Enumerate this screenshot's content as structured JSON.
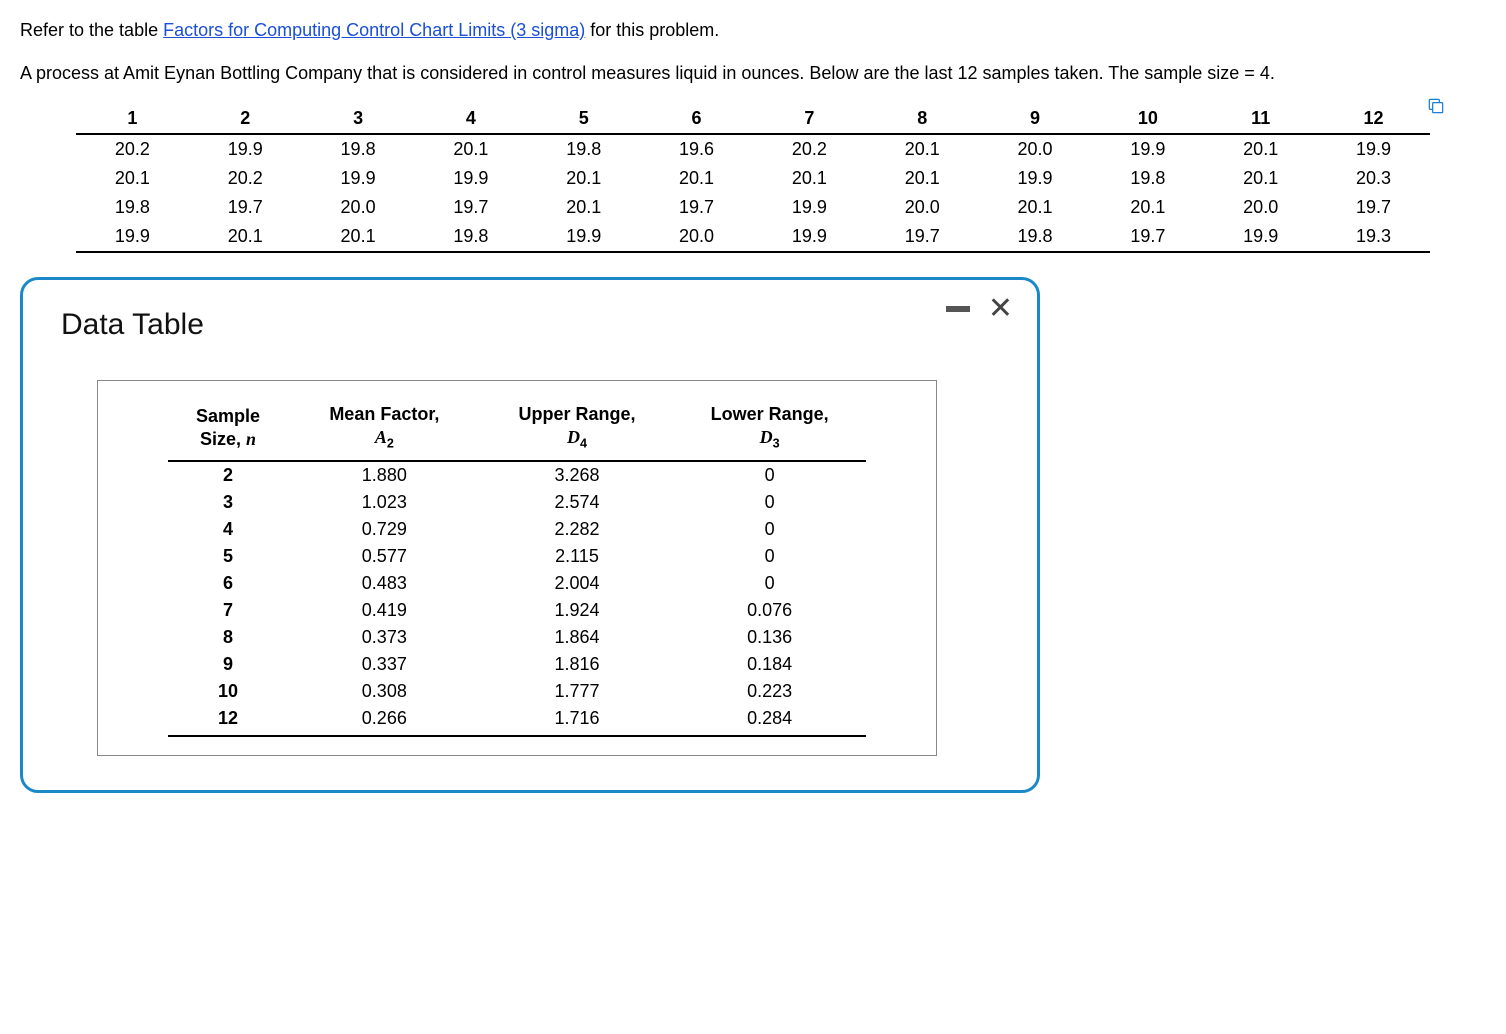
{
  "intro": {
    "prefix": "Refer to the table ",
    "link_text": "Factors for Computing Control Chart Limits (3 sigma)",
    "suffix": " for this problem.",
    "paragraph": "A process at Amit Eynan Bottling Company that is considered in control measures liquid in ounces. Below are the last 12 samples taken. The sample size = 4."
  },
  "samples": {
    "headers": [
      "1",
      "2",
      "3",
      "4",
      "5",
      "6",
      "7",
      "8",
      "9",
      "10",
      "11",
      "12"
    ],
    "rows": [
      [
        "20.2",
        "19.9",
        "19.8",
        "20.1",
        "19.8",
        "19.6",
        "20.2",
        "20.1",
        "20.0",
        "19.9",
        "20.1",
        "19.9"
      ],
      [
        "20.1",
        "20.2",
        "19.9",
        "19.9",
        "20.1",
        "20.1",
        "20.1",
        "20.1",
        "19.9",
        "19.8",
        "20.1",
        "20.3"
      ],
      [
        "19.8",
        "19.7",
        "20.0",
        "19.7",
        "20.1",
        "19.7",
        "19.9",
        "20.0",
        "20.1",
        "20.1",
        "20.0",
        "19.7"
      ],
      [
        "19.9",
        "20.1",
        "20.1",
        "19.8",
        "19.9",
        "20.0",
        "19.9",
        "19.7",
        "19.8",
        "19.7",
        "19.9",
        "19.3"
      ]
    ]
  },
  "modal": {
    "title": "Data Table",
    "col_headers": {
      "c1_l1": "Sample",
      "c1_l2": "Size, ",
      "c1_var": "n",
      "c2_l1": "Mean Factor,",
      "c2_var": "A",
      "c2_sub": "2",
      "c3_l1": "Upper Range,",
      "c3_var": "D",
      "c3_sub": "4",
      "c4_l1": "Lower Range,",
      "c4_var": "D",
      "c4_sub": "3"
    },
    "rows": [
      {
        "n": "2",
        "a2": "1.880",
        "d4": "3.268",
        "d3": "0"
      },
      {
        "n": "3",
        "a2": "1.023",
        "d4": "2.574",
        "d3": "0"
      },
      {
        "n": "4",
        "a2": "0.729",
        "d4": "2.282",
        "d3": "0"
      },
      {
        "n": "5",
        "a2": "0.577",
        "d4": "2.115",
        "d3": "0"
      },
      {
        "n": "6",
        "a2": "0.483",
        "d4": "2.004",
        "d3": "0"
      },
      {
        "n": "7",
        "a2": "0.419",
        "d4": "1.924",
        "d3": "0.076"
      },
      {
        "n": "8",
        "a2": "0.373",
        "d4": "1.864",
        "d3": "0.136"
      },
      {
        "n": "9",
        "a2": "0.337",
        "d4": "1.816",
        "d3": "0.184"
      },
      {
        "n": "10",
        "a2": "0.308",
        "d4": "1.777",
        "d3": "0.223"
      },
      {
        "n": "12",
        "a2": "0.266",
        "d4": "1.716",
        "d3": "0.284"
      }
    ]
  },
  "colors": {
    "link": "#1a4fd6",
    "modal_border": "#1b88c7",
    "text": "#000000",
    "rule": "#000000"
  }
}
